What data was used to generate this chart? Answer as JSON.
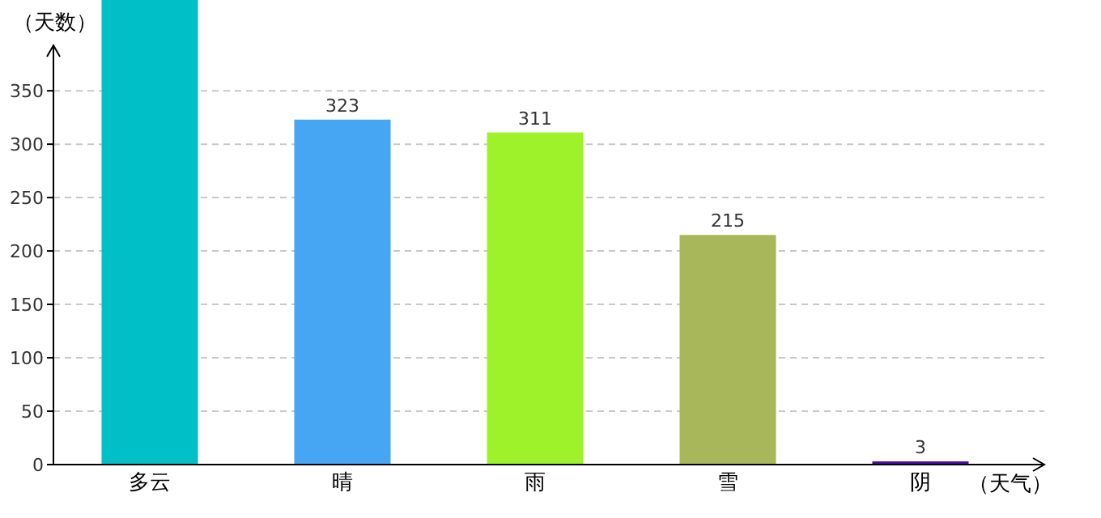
{
  "chart_data": {
    "type": "bar",
    "ylabel": "（天数）",
    "xlabel": "（天气）",
    "categories": [
      "多云",
      "晴",
      "雨",
      "雪",
      "阴"
    ],
    "values": [
      435,
      323,
      311,
      215,
      3
    ],
    "value_labels": [
      null,
      "323",
      "311",
      "215",
      "3"
    ],
    "colors": [
      "#00bfc7",
      "#46a6f3",
      "#9ef22a",
      "#a8b75a",
      "#4b0e9e"
    ],
    "ylim": [
      0,
      435
    ],
    "yticks": [
      0,
      50,
      100,
      150,
      200,
      250,
      300,
      350
    ],
    "grid": "y"
  }
}
